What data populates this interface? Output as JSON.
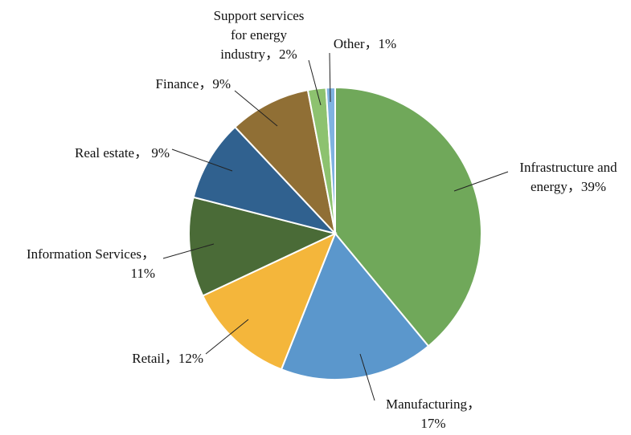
{
  "chart_data": {
    "type": "pie",
    "start_angle_deg": 0,
    "direction": "clockwise",
    "slices": [
      {
        "category": "Infrastructure and energy",
        "value": 39,
        "label_lines": [
          "Infrastructure and",
          "energy，39%"
        ],
        "color": "#70A85A"
      },
      {
        "category": "Manufacturing",
        "value": 17,
        "label_lines": [
          "Manufacturing，",
          "17%"
        ],
        "color": "#5B97CC"
      },
      {
        "category": "Retail",
        "value": 12,
        "label_lines": [
          "Retail，12%"
        ],
        "color": "#F4B63B"
      },
      {
        "category": "Information Services",
        "value": 11,
        "label_lines": [
          "Information Services，",
          "11%"
        ],
        "color": "#4A6B37"
      },
      {
        "category": "Real estate",
        "value": 9,
        "label_lines": [
          "Real estate， 9%"
        ],
        "color": "#30618F"
      },
      {
        "category": "Finance",
        "value": 9,
        "label_lines": [
          "Finance，9%"
        ],
        "color": "#906F35"
      },
      {
        "category": "Support services for energy industry",
        "value": 2,
        "label_lines": [
          "Support services",
          "for energy",
          "industry，2%"
        ],
        "color": "#8DC26F"
      },
      {
        "category": "Other",
        "value": 1,
        "label_lines": [
          "Other，1%"
        ],
        "color": "#7FB2E0"
      }
    ]
  }
}
